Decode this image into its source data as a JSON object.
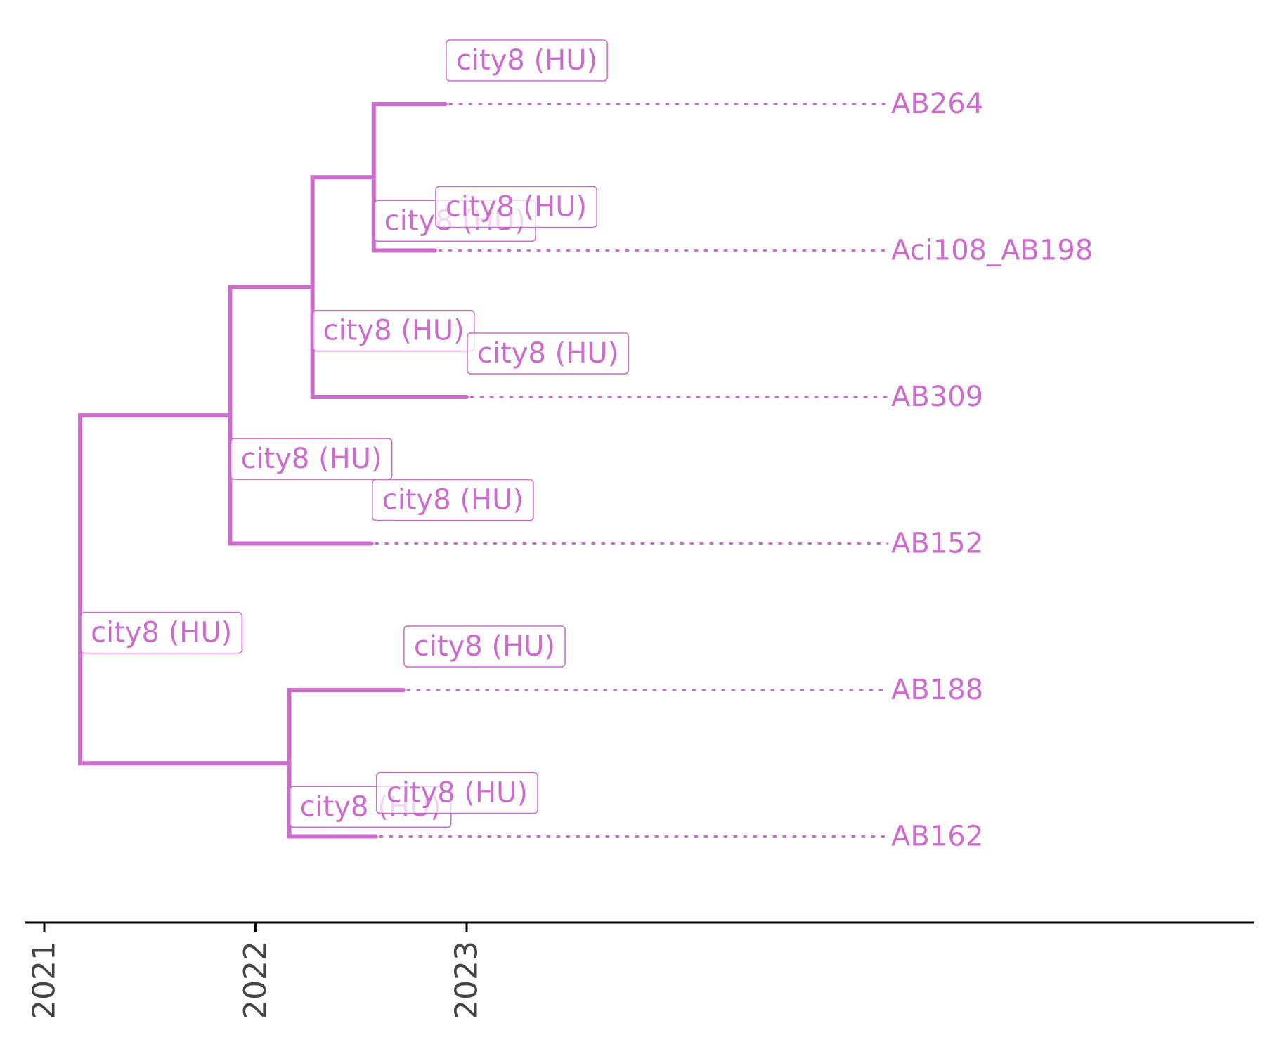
{
  "chart_data": {
    "type": "phylogenetic-tree",
    "title": "",
    "x_axis": {
      "label": "",
      "ticks": [
        2021,
        2022,
        2023
      ]
    },
    "branch_color": "#cc6ccc",
    "tips": [
      {
        "name": "AB264",
        "date": 2022.9
      },
      {
        "name": "Aci108_AB198",
        "date": 2022.85
      },
      {
        "name": "AB309",
        "date": 2023.0
      },
      {
        "name": "AB152",
        "date": 2022.55
      },
      {
        "name": "AB188",
        "date": 2022.7
      },
      {
        "name": "AB162",
        "date": 2022.57
      }
    ],
    "nodes": [
      {
        "id": "root",
        "date": 2021.17,
        "children": [
          "n_a",
          "n_b"
        ]
      },
      {
        "id": "n_a",
        "date": 2021.88,
        "children": [
          "n_c",
          "AB152"
        ]
      },
      {
        "id": "n_c",
        "date": 2022.27,
        "children": [
          "n_d",
          "AB309"
        ]
      },
      {
        "id": "n_d",
        "date": 2022.56,
        "children": [
          "AB264",
          "Aci108_AB198"
        ]
      },
      {
        "id": "n_b",
        "date": 2022.16,
        "children": [
          "AB188",
          "AB162"
        ]
      }
    ],
    "node_labels": [
      {
        "target": "AB264",
        "text": "city8 (HU)"
      },
      {
        "target": "n_d",
        "text": "city8 (HU)"
      },
      {
        "target": "Aci108_AB198",
        "text": "city8 (HU)"
      },
      {
        "target": "n_c",
        "text": "city8 (HU)"
      },
      {
        "target": "AB309",
        "text": "city8 (HU)"
      },
      {
        "target": "n_a",
        "text": "city8 (HU)"
      },
      {
        "target": "AB152",
        "text": "city8 (HU)"
      },
      {
        "target": "root",
        "text": "city8 (HU)"
      },
      {
        "target": "AB188",
        "text": "city8 (HU)"
      },
      {
        "target": "n_b",
        "text": "city8 (HU)"
      },
      {
        "target": "AB162",
        "text": "city8 (HU)"
      }
    ]
  }
}
